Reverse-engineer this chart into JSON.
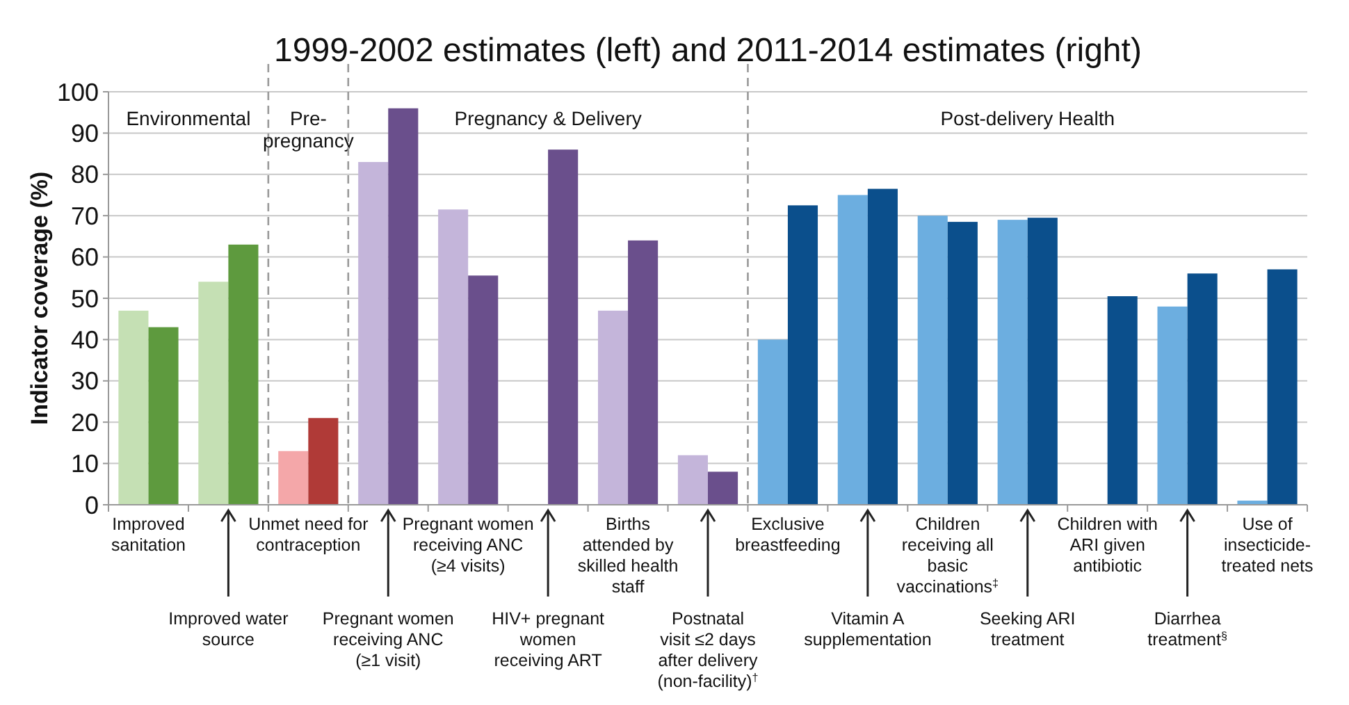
{
  "chart_data": {
    "type": "bar",
    "title": "1999-2002 estimates (left) and 2011-2014 estimates (right)",
    "ylabel": "Indicator coverage (%)",
    "categories": [
      "Improved sanitation",
      "Improved water source",
      "Unmet need for contraception",
      "Pregnant women receiving ANC (≥1 visit)",
      "Pregnant women receiving ANC (≥4 visits)",
      "HIV+ pregnant women receiving ART",
      "Births attended by skilled health staff",
      "Postnatal visit ≤2 days after delivery (non-facility)$^{†}$",
      "Exclusive breastfeeding",
      "Vitamin A supplementation",
      "Children receiving all basic vaccinations$^{‡}$",
      "Seeking ARI treatment",
      "Children with ARI given antibiotic",
      "Diarrhea treatment$^{§}$",
      "Use of insecticide-treated nets"
    ],
    "series": [
      {
        "colors": [
          "#c5e0b4",
          "#c5e0b4",
          "#f4a7a9",
          "#c4b5da",
          "#c4b5da",
          null,
          "#c4b5da",
          "#c4b5da",
          "#6caee0",
          "#6caee0",
          "#6caee0",
          "#6caee0",
          null,
          "#6caee0",
          "#6caee0"
        ],
        "values": [
          47,
          54,
          13,
          83,
          71.5,
          null,
          47,
          12,
          40,
          75,
          70,
          69,
          null,
          48,
          1
        ]
      },
      {
        "colors": [
          "#5e9a3e",
          "#5e9a3e",
          "#b03a37",
          "#6a4f8c",
          "#6a4f8c",
          "#6a4f8c",
          "#6a4f8c",
          "#6a4f8c",
          "#0b4f8c",
          "#0b4f8c",
          "#0b4f8c",
          "#0b4f8c",
          "#0b4f8c",
          "#0b4f8c",
          "#0b4f8c"
        ],
        "values": [
          43,
          63,
          21,
          96,
          55.5,
          86,
          64,
          8,
          72.5,
          76.5,
          68.5,
          69.5,
          50.5,
          56,
          57
        ]
      }
    ],
    "ylim": [
      0,
      100
    ],
    "yticks": [
      0,
      10,
      20,
      30,
      40,
      50,
      60,
      70,
      80,
      90,
      100
    ],
    "grid": "y",
    "annotations": [
      "Environmental",
      "Pre-pregnancy",
      "Pregnancy & Delivery",
      "Post-delivery Health"
    ]
  }
}
